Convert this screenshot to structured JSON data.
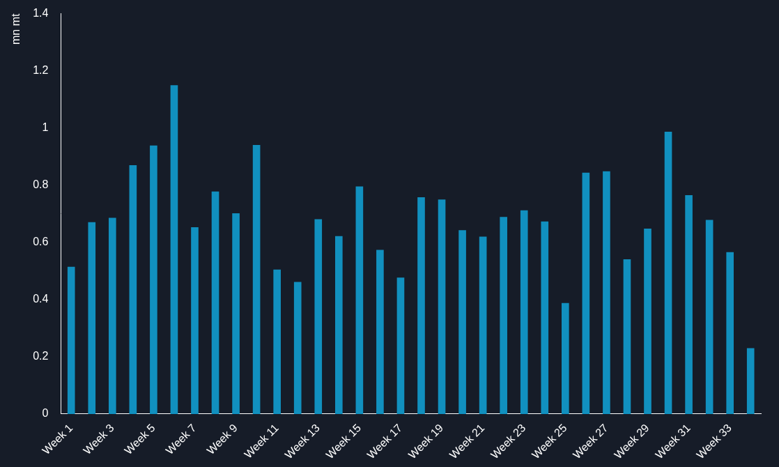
{
  "chart_data": {
    "type": "bar",
    "y_label": "mn mt",
    "categories": [
      "Week 1",
      null,
      "Week 3",
      null,
      "Week 5",
      null,
      "Week 7",
      null,
      "Week 9",
      null,
      "Week 11",
      null,
      "Week 13",
      null,
      "Week 15",
      null,
      "Week 17",
      null,
      "Week 19",
      null,
      "Week 21",
      null,
      "Week 23",
      null,
      "Week 25",
      null,
      "Week 27",
      null,
      "Week 29",
      null,
      "Week 31",
      null,
      "Week 33",
      null
    ],
    "values": [
      0.515,
      0.671,
      0.686,
      0.87,
      0.939,
      1.15,
      0.653,
      0.778,
      0.702,
      0.941,
      0.505,
      0.462,
      0.681,
      0.622,
      0.796,
      0.574,
      0.477,
      0.758,
      0.75,
      0.643,
      0.62,
      0.689,
      0.712,
      0.673,
      0.388,
      0.844,
      0.849,
      0.541,
      0.648,
      0.987,
      0.765,
      0.679,
      0.566,
      0.23
    ],
    "color": "#1190bf",
    "ylim": [
      0,
      1.4
    ],
    "yticks": [
      0,
      0.2,
      0.4,
      0.6,
      0.8,
      1,
      1.2,
      1.4
    ],
    "grid": false
  }
}
